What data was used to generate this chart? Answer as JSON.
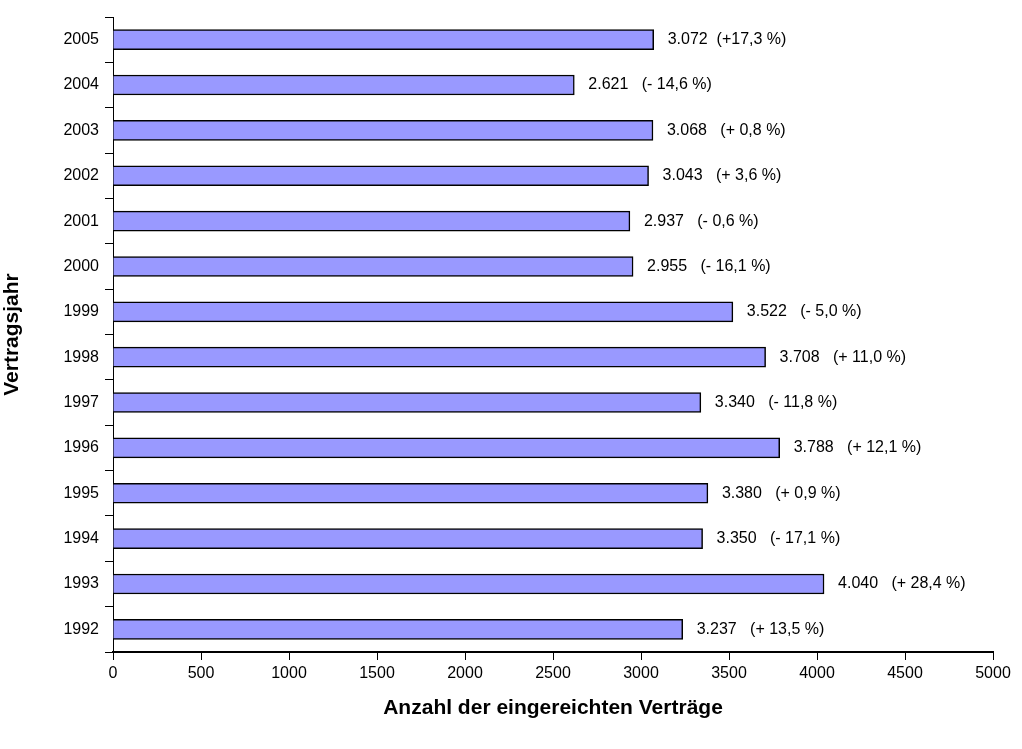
{
  "chart_data": {
    "type": "bar",
    "orientation": "horizontal",
    "xlabel": "Anzahl der eingereichten Verträge",
    "ylabel": "Vertragsjahr",
    "categories": [
      "2005",
      "2004",
      "2003",
      "2002",
      "2001",
      "2000",
      "1999",
      "1998",
      "1997",
      "1996",
      "1995",
      "1994",
      "1993",
      "1992"
    ],
    "values": [
      3072,
      2621,
      3068,
      3043,
      2937,
      2955,
      3522,
      3708,
      3340,
      3788,
      3380,
      3350,
      4040,
      3237
    ],
    "value_labels": [
      "3.072  (+17,3 %)",
      "2.621   (- 14,6 %)",
      "3.068   (+ 0,8 %)",
      "3.043   (+ 3,6 %)",
      "2.937   (- 0,6 %)",
      "2.955   (- 16,1 %)",
      "3.522   (- 5,0 %)",
      "3.708   (+ 11,0 %)",
      "3.340   (- 11,8 %)",
      "3.788   (+ 12,1 %)",
      "3.380   (+ 0,9 %)",
      "3.350   (- 17,1 %)",
      "4.040   (+ 28,4 %)",
      "3.237   (+ 13,5 %)"
    ],
    "color": "#9999ff",
    "xlim": [
      0,
      5000
    ],
    "xticks": [
      0,
      500,
      1000,
      1500,
      2000,
      2500,
      3000,
      3500,
      4000,
      4500,
      5000
    ]
  }
}
